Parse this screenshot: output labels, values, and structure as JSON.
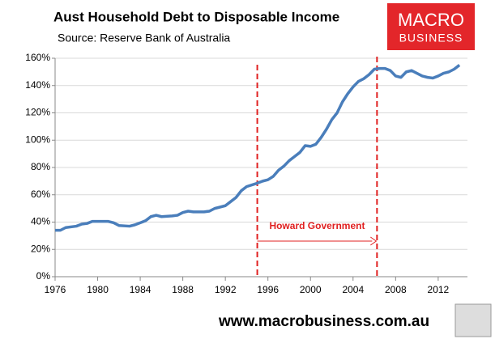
{
  "chart_data": {
    "type": "line",
    "title": "Aust Household Debt to Disposable Income",
    "subtitle": "Source: Reserve Bank of Australia",
    "x": [
      1976,
      1976.5,
      1977,
      1978,
      1978.5,
      1979,
      1979.5,
      1980,
      1981,
      1981.5,
      1982,
      1983,
      1983.5,
      1984,
      1984.5,
      1985,
      1985.5,
      1986,
      1987,
      1987.5,
      1988,
      1988.5,
      1989,
      1990,
      1990.5,
      1991,
      1992,
      1992.5,
      1993,
      1993.5,
      1994,
      1995,
      1995.5,
      1996,
      1996.5,
      1997,
      1997.5,
      1998,
      1998.5,
      1999,
      1999.5,
      2000,
      2000.5,
      2001,
      2001.5,
      2002,
      2002.5,
      2003,
      2003.5,
      2004,
      2004.5,
      2005,
      2005.5,
      2006,
      2006.5,
      2007,
      2007.5,
      2008,
      2008.5,
      2009,
      2009.5,
      2010,
      2010.5,
      2011,
      2011.5,
      2012,
      2012.5,
      2013,
      2013.5,
      2014
    ],
    "series": [
      {
        "name": "Household debt to disposable income",
        "color": "#4a7ebb",
        "values": [
          34,
          34,
          36,
          37,
          38.5,
          39,
          40.5,
          40.5,
          40.5,
          39.5,
          37.5,
          37,
          38,
          39.5,
          41,
          44,
          45,
          44,
          44.5,
          45,
          47,
          48,
          47.5,
          47.5,
          48,
          50,
          52,
          55,
          58,
          63,
          66,
          68.5,
          70,
          71,
          73.5,
          78,
          81,
          85,
          88,
          91,
          96,
          95.5,
          97,
          102,
          108,
          115,
          120,
          128,
          134,
          139,
          143,
          145,
          148,
          152,
          152.5,
          152.5,
          151,
          147,
          146,
          150,
          151,
          149,
          147,
          146,
          145.5,
          147,
          149,
          150,
          152,
          155
        ]
      }
    ],
    "xlim": [
      1976,
      2014.75
    ],
    "xticks": [
      1976,
      1980,
      1984,
      1988,
      1992,
      1996,
      2000,
      2004,
      2008,
      2012
    ],
    "ylim": [
      0,
      160
    ],
    "yticks": [
      {
        "value": 0,
        "label": "0%"
      },
      {
        "value": 20,
        "label": "20%"
      },
      {
        "value": 40,
        "label": "40%"
      },
      {
        "value": 60,
        "label": "60%"
      },
      {
        "value": 80,
        "label": "80%"
      },
      {
        "value": 100,
        "label": "100%"
      },
      {
        "value": 120,
        "label": "120%"
      },
      {
        "value": 140,
        "label": "140%"
      },
      {
        "value": 160,
        "label": "160%"
      }
    ],
    "grid": true,
    "period": {
      "start": 1995,
      "end": 2006.25,
      "label": "Howard Government",
      "color": "#e02020"
    },
    "logo": {
      "line1": "MACRO",
      "line2": "BUSINESS"
    },
    "footer": "www.macrobusiness.com.au"
  }
}
